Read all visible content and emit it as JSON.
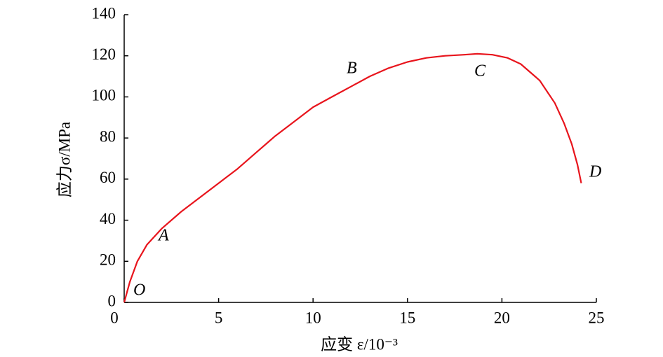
{
  "chart_data": {
    "type": "line",
    "x_label": "应变 ε/10⁻³",
    "y_label": "应力σ/MPa",
    "annotations": [
      "O",
      "A",
      "B",
      "C",
      "D"
    ],
    "x": [
      0,
      0.3,
      0.7,
      1.2,
      2,
      3,
      4,
      5,
      6,
      7,
      8,
      9,
      10,
      11,
      12,
      13,
      14,
      15,
      16,
      17,
      18,
      18.7,
      19.5,
      20.3,
      21,
      22,
      22.8,
      23.3,
      23.7,
      24,
      24.2
    ],
    "series": [
      {
        "color": "#e8141c",
        "values": [
          0,
          10,
          20,
          28,
          36,
          44,
          51,
          58,
          65,
          73,
          81,
          88,
          95,
          100,
          105,
          110,
          114,
          117,
          119,
          120,
          120.5,
          121,
          120.5,
          119,
          116,
          108,
          97,
          87,
          77,
          67,
          58
        ]
      }
    ],
    "xlim": [
      0,
      25
    ],
    "xticks": [
      0,
      5,
      10,
      15,
      20,
      25
    ],
    "ylim": [
      0,
      140
    ],
    "yticks": [
      0,
      20,
      40,
      60,
      80,
      100,
      120,
      140
    ]
  }
}
